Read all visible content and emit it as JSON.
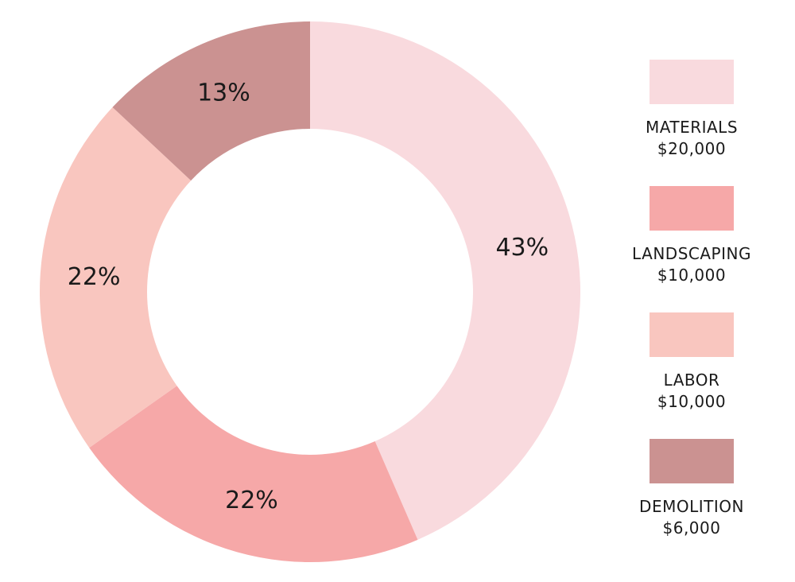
{
  "chart_data": {
    "type": "donut",
    "title": "",
    "slices": [
      {
        "name": "MATERIALS",
        "amount": "$20,000",
        "value": 20000,
        "percent_label": "43%",
        "color": "#f9dade"
      },
      {
        "name": "LANDSCAPING",
        "amount": "$10,000",
        "value": 10000,
        "percent_label": "22%",
        "color": "#f6a8a8"
      },
      {
        "name": "LABOR",
        "amount": "$10,000",
        "value": 10000,
        "percent_label": "22%",
        "color": "#f9c6bf"
      },
      {
        "name": "DEMOLITION",
        "amount": "$6,000",
        "value": 6000,
        "percent_label": "13%",
        "color": "#cb9291"
      }
    ],
    "legend_position": "right"
  }
}
